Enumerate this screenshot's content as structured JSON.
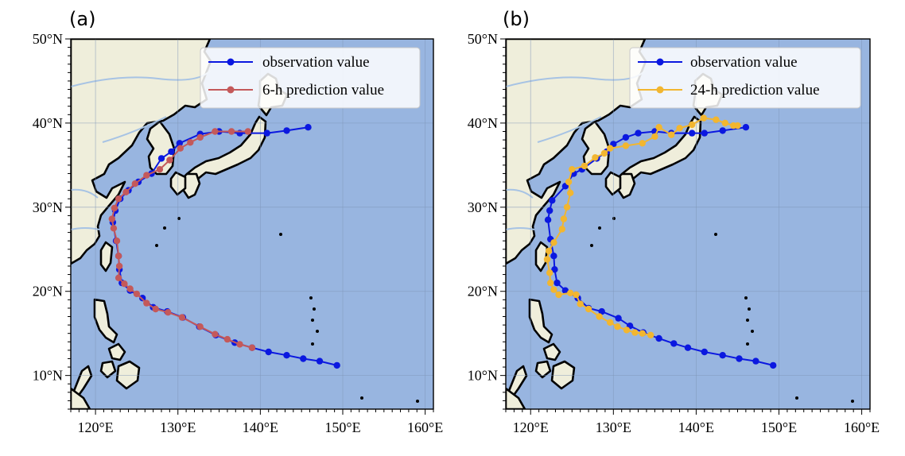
{
  "colors": {
    "ocean": "#98b5e0",
    "land": "#efeedb",
    "coast": "#000000",
    "river": "#a7c3e4",
    "gridline": "#7f96b8",
    "observation": "#0b18e0",
    "prediction_6h": "#c4595a",
    "prediction_24h": "#f2b630"
  },
  "map_extent": {
    "lon": [
      117,
      161
    ],
    "lat": [
      6,
      50
    ]
  },
  "axes": {
    "lon_ticks": [
      {
        "value": 120,
        "label": "120°E"
      },
      {
        "value": 130,
        "label": "130°E"
      },
      {
        "value": 140,
        "label": "140°E"
      },
      {
        "value": 150,
        "label": "150°E"
      },
      {
        "value": 160,
        "label": "160°E"
      }
    ],
    "lat_ticks": [
      {
        "value": 10,
        "label": "10°N"
      },
      {
        "value": 20,
        "label": "20°N"
      },
      {
        "value": 30,
        "label": "30°N"
      },
      {
        "value": 40,
        "label": "40°N"
      },
      {
        "value": 50,
        "label": "50°N"
      }
    ]
  },
  "chart_data": [
    {
      "type": "line",
      "panel": "(a)",
      "legend_position": "top-right",
      "series": [
        {
          "name": "observation value",
          "color": "#0b18e0",
          "points": [
            [
              149.3,
              11.2
            ],
            [
              147.2,
              11.7
            ],
            [
              145.2,
              12.0
            ],
            [
              143.2,
              12.4
            ],
            [
              141.0,
              12.8
            ],
            [
              139.0,
              13.3
            ],
            [
              136.9,
              13.9
            ],
            [
              134.6,
              14.8
            ],
            [
              132.6,
              15.8
            ],
            [
              130.6,
              16.9
            ],
            [
              128.7,
              17.6
            ],
            [
              127.0,
              18.1
            ],
            [
              125.7,
              19.2
            ],
            [
              124.2,
              20.1
            ],
            [
              123.2,
              21.0
            ],
            [
              122.9,
              22.6
            ],
            [
              122.8,
              24.2
            ],
            [
              122.5,
              26.0
            ],
            [
              122.1,
              28.2
            ],
            [
              122.4,
              29.6
            ],
            [
              123.0,
              31.0
            ],
            [
              124.0,
              32.0
            ],
            [
              125.2,
              33.0
            ],
            [
              126.8,
              34.0
            ],
            [
              128.0,
              35.8
            ],
            [
              129.2,
              36.6
            ],
            [
              130.2,
              37.6
            ],
            [
              132.7,
              38.7
            ],
            [
              135.0,
              39.0
            ],
            [
              137.5,
              38.8
            ],
            [
              140.8,
              38.8
            ],
            [
              143.2,
              39.1
            ],
            [
              145.8,
              39.5
            ]
          ]
        },
        {
          "name": "6-h prediction value",
          "color": "#c4595a",
          "points": [
            [
              139.0,
              13.3
            ],
            [
              137.5,
              13.7
            ],
            [
              136.0,
              14.3
            ],
            [
              134.5,
              14.9
            ],
            [
              132.7,
              15.8
            ],
            [
              130.5,
              16.9
            ],
            [
              128.8,
              17.5
            ],
            [
              127.3,
              17.9
            ],
            [
              126.2,
              18.6
            ],
            [
              125.0,
              19.7
            ],
            [
              124.2,
              20.3
            ],
            [
              123.5,
              20.9
            ],
            [
              122.8,
              21.6
            ],
            [
              122.9,
              23.0
            ],
            [
              122.8,
              24.2
            ],
            [
              122.6,
              26.0
            ],
            [
              122.2,
              27.5
            ],
            [
              122.0,
              28.6
            ],
            [
              122.3,
              29.9
            ],
            [
              122.8,
              31.0
            ],
            [
              123.7,
              31.8
            ],
            [
              124.8,
              32.8
            ],
            [
              126.2,
              33.8
            ],
            [
              127.8,
              34.5
            ],
            [
              129.0,
              35.6
            ],
            [
              130.3,
              37.0
            ],
            [
              131.5,
              37.7
            ],
            [
              132.7,
              38.3
            ],
            [
              134.5,
              39.0
            ],
            [
              136.5,
              39.0
            ],
            [
              138.5,
              39.0
            ]
          ]
        }
      ]
    },
    {
      "type": "line",
      "panel": "(b)",
      "legend_position": "top-right",
      "series": [
        {
          "name": "observation value",
          "color": "#0b18e0",
          "points": [
            [
              149.3,
              11.2
            ],
            [
              147.2,
              11.7
            ],
            [
              145.2,
              12.0
            ],
            [
              143.2,
              12.4
            ],
            [
              141.0,
              12.8
            ],
            [
              139.0,
              13.3
            ],
            [
              137.3,
              13.8
            ],
            [
              135.5,
              14.4
            ],
            [
              133.6,
              15.1
            ],
            [
              132.0,
              15.9
            ],
            [
              130.6,
              16.8
            ],
            [
              128.6,
              17.6
            ],
            [
              127.0,
              18.0
            ],
            [
              125.7,
              19.2
            ],
            [
              124.2,
              20.1
            ],
            [
              123.2,
              21.0
            ],
            [
              122.9,
              22.6
            ],
            [
              122.8,
              24.2
            ],
            [
              122.4,
              26.2
            ],
            [
              122.1,
              28.5
            ],
            [
              122.3,
              29.6
            ],
            [
              122.6,
              30.8
            ],
            [
              124.2,
              32.5
            ],
            [
              125.2,
              34.0
            ],
            [
              126.2,
              34.5
            ],
            [
              128.0,
              35.8
            ],
            [
              129.2,
              36.6
            ],
            [
              130.0,
              37.5
            ],
            [
              131.5,
              38.3
            ],
            [
              133.0,
              38.8
            ],
            [
              135.0,
              39.0
            ],
            [
              137.0,
              38.8
            ],
            [
              139.5,
              38.8
            ],
            [
              141.0,
              38.8
            ],
            [
              143.2,
              39.1
            ],
            [
              146.0,
              39.5
            ]
          ]
        },
        {
          "name": "24-h prediction value",
          "color": "#f2b630",
          "points": [
            [
              134.5,
              14.8
            ],
            [
              133.5,
              15.0
            ],
            [
              132.6,
              15.1
            ],
            [
              131.6,
              15.4
            ],
            [
              130.5,
              15.8
            ],
            [
              129.6,
              16.3
            ],
            [
              128.3,
              17.0
            ],
            [
              127.0,
              17.9
            ],
            [
              126.0,
              18.5
            ],
            [
              125.5,
              19.6
            ],
            [
              124.8,
              19.8
            ],
            [
              123.4,
              19.6
            ],
            [
              122.8,
              20.2
            ],
            [
              122.4,
              21.0
            ],
            [
              122.3,
              22.2
            ],
            [
              122.0,
              23.8
            ],
            [
              122.2,
              24.8
            ],
            [
              122.8,
              25.8
            ],
            [
              123.8,
              27.4
            ],
            [
              124.0,
              28.6
            ],
            [
              124.4,
              30.0
            ],
            [
              124.8,
              31.7
            ],
            [
              124.6,
              33.0
            ],
            [
              125.0,
              34.5
            ],
            [
              126.5,
              34.9
            ],
            [
              127.8,
              35.9
            ],
            [
              128.9,
              36.4
            ],
            [
              129.6,
              37.0
            ],
            [
              131.5,
              37.3
            ],
            [
              133.5,
              37.6
            ],
            [
              135.0,
              38.4
            ],
            [
              135.5,
              39.5
            ],
            [
              137.0,
              38.6
            ],
            [
              138.0,
              39.4
            ],
            [
              139.5,
              39.8
            ],
            [
              140.9,
              40.6
            ],
            [
              142.4,
              40.4
            ],
            [
              143.5,
              40.0
            ],
            [
              144.5,
              39.7
            ],
            [
              145.0,
              39.7
            ]
          ]
        }
      ]
    }
  ]
}
